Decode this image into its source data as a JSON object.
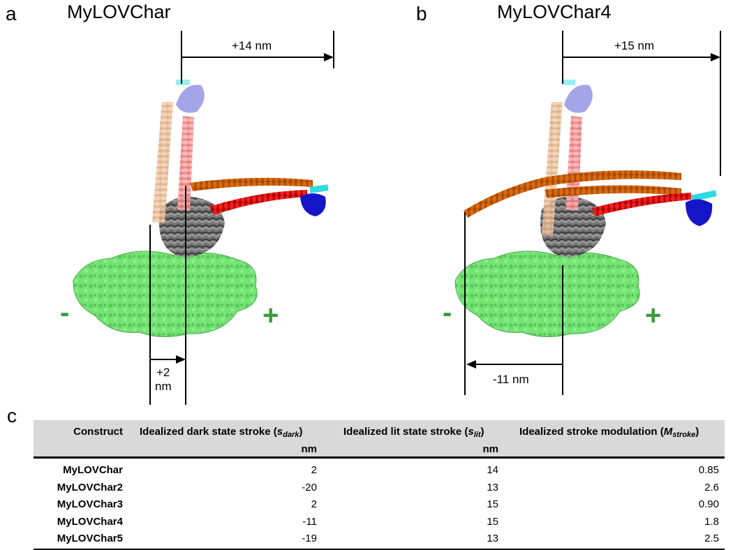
{
  "panel_a": {
    "letter": "a",
    "title": "MyLOVChar",
    "top_arrow_label": "+14 nm",
    "bottom_arrow_label_line1": "+2",
    "bottom_arrow_label_line2": "nm",
    "minus": "-",
    "plus": "+"
  },
  "panel_b": {
    "letter": "b",
    "title": "MyLOVChar4",
    "top_arrow_label": "+15 nm",
    "bottom_arrow_label": "-11 nm",
    "minus": "-",
    "plus": "+"
  },
  "panel_c": {
    "letter": "c",
    "header": {
      "construct": "Construct",
      "dark_prefix": "Idealized dark state stroke (",
      "dark_symbol": "s",
      "dark_sub": "dark",
      "dark_suffix": ")",
      "lit_prefix": "Idealized lit state stroke (",
      "lit_symbol": "s",
      "lit_sub": "lit",
      "lit_suffix": ")",
      "mod_prefix": "Idealized stroke modulation  (",
      "mod_symbol": "M",
      "mod_sub": "stroke",
      "mod_suffix": ")",
      "unit_dark": "nm",
      "unit_lit": "nm"
    },
    "rows": [
      {
        "construct": "MyLOVChar",
        "dark": "2",
        "lit": "14",
        "mod": "0.85"
      },
      {
        "construct": "MyLOVChar2",
        "dark": "-20",
        "lit": "13",
        "mod": "2.6"
      },
      {
        "construct": "MyLOVChar3",
        "dark": "2",
        "lit": "15",
        "mod": "0.90"
      },
      {
        "construct": "MyLOVChar4",
        "dark": "-11",
        "lit": "15",
        "mod": "1.8"
      },
      {
        "construct": "MyLOVChar5",
        "dark": "-19",
        "lit": "13",
        "mod": "2.5"
      }
    ]
  },
  "colors": {
    "actin_green": "#6ee06e",
    "actin_dark": "#3c9a3c",
    "motor_gray": "#5a5a5a",
    "helix_orange": "#c85a00",
    "helix_red": "#e01010",
    "lov_blue": "#1010c0",
    "cyan": "#30d8e0",
    "pale_peach": "#e8b890",
    "pale_pink": "#f09090",
    "pale_blue": "#8888e0"
  }
}
